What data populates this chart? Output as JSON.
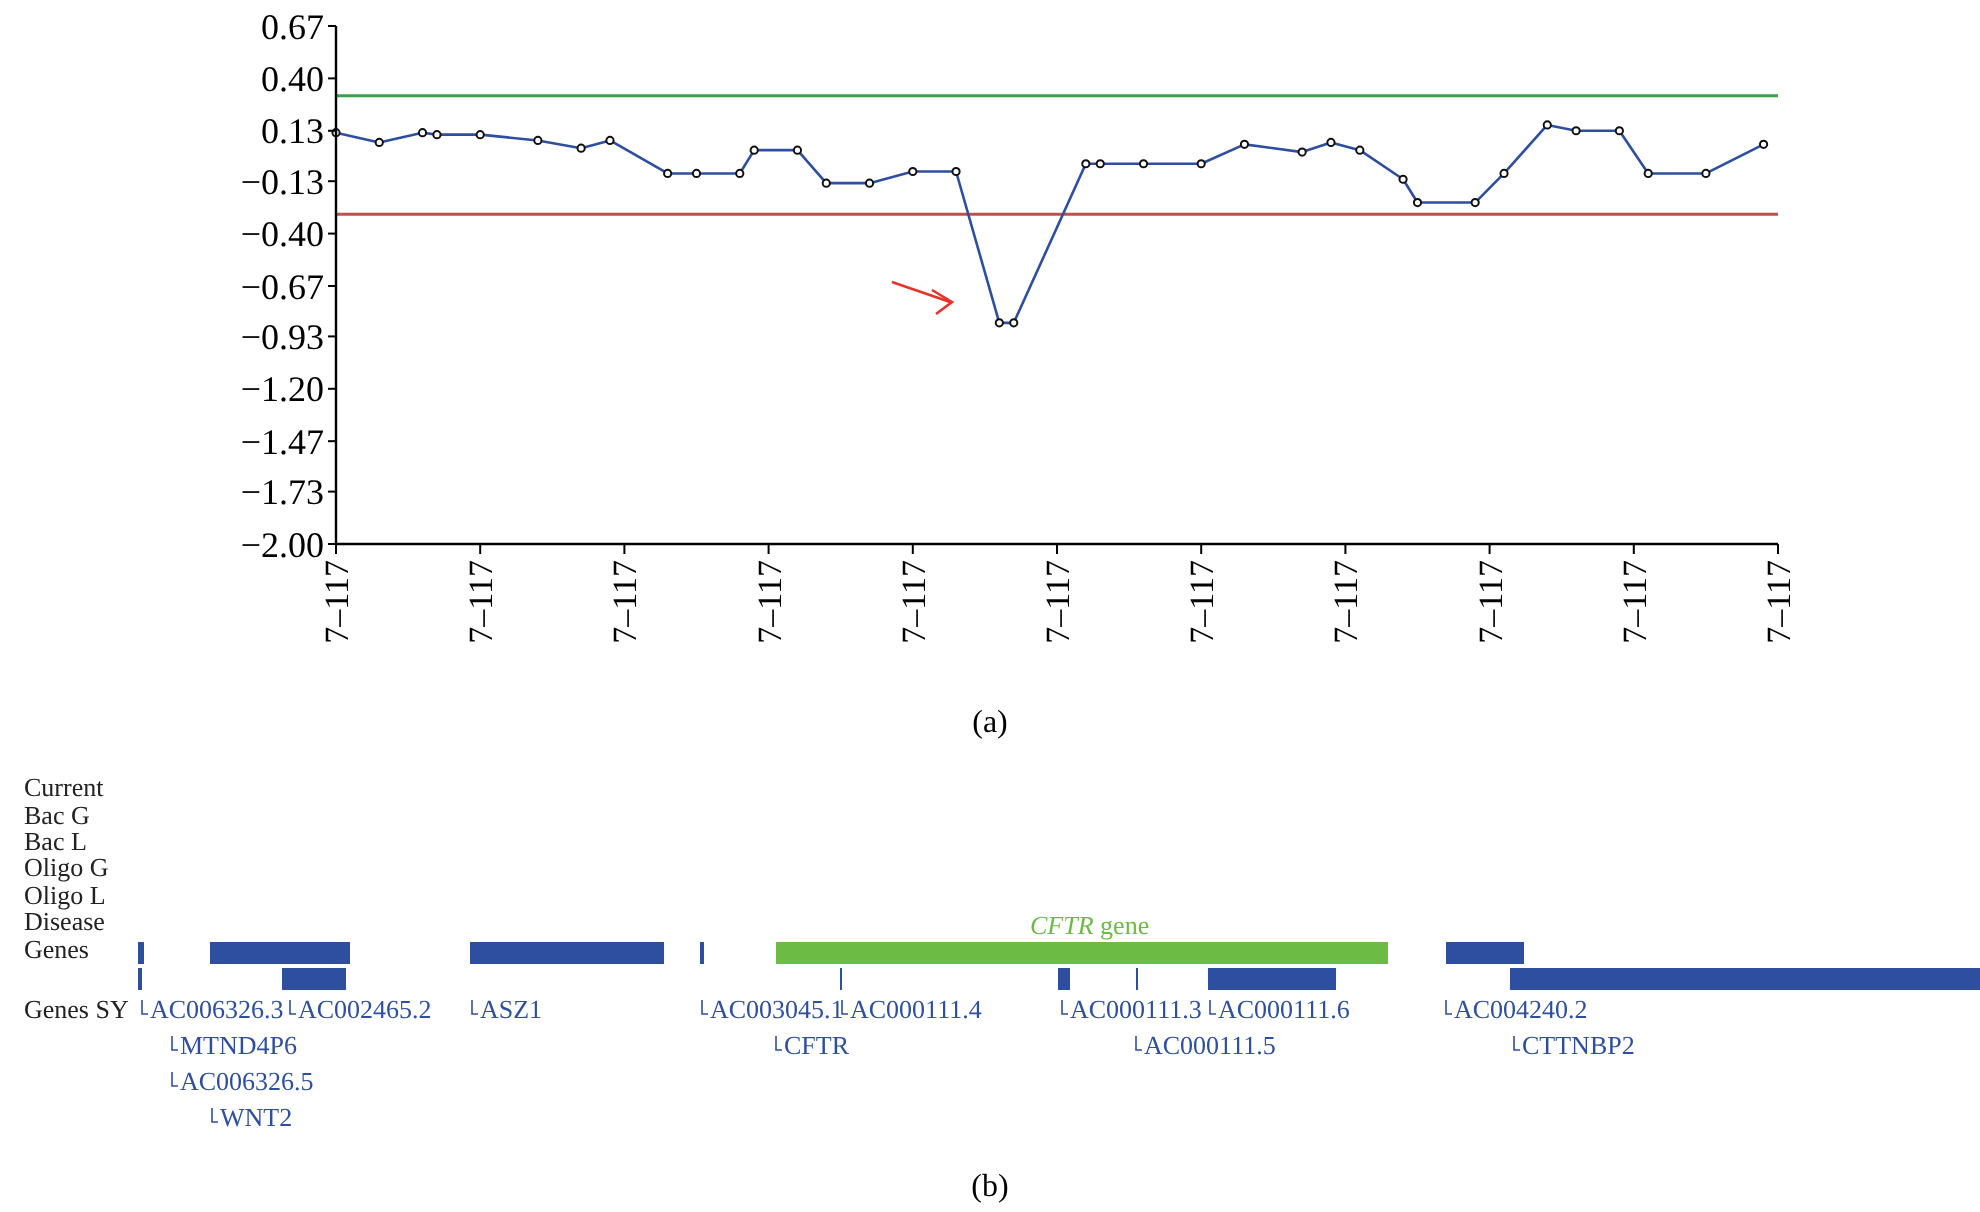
{
  "chart_data": [
    {
      "type": "line",
      "categories": [
        "7–117",
        null,
        null,
        null,
        null,
        null,
        null,
        null,
        null,
        null,
        "7–117",
        null,
        null,
        null,
        null,
        null,
        null,
        null,
        null,
        null,
        "7–117",
        null,
        null,
        null,
        null,
        null,
        null,
        null,
        null,
        null,
        "7–117",
        null,
        null,
        null,
        null,
        null,
        null,
        null,
        null,
        null,
        "7–117",
        null,
        null,
        null,
        null,
        null,
        null,
        null,
        null,
        null,
        "7–117",
        null,
        null,
        null,
        null,
        null,
        null,
        null,
        null,
        null,
        "7–117",
        null,
        null,
        null,
        null,
        null,
        null,
        null,
        null,
        null,
        "7–117",
        null,
        null,
        null,
        null,
        null,
        null,
        null,
        null,
        null,
        "7–117",
        null,
        null,
        null,
        null,
        null,
        null,
        null,
        null,
        null,
        "7–117",
        null,
        null,
        null,
        null,
        null,
        null,
        null,
        null,
        null,
        "7–117"
      ],
      "ylim": [
        -2.0,
        0.67
      ],
      "yticks": [
        {
          "value": 0.67,
          "label": "0.67"
        },
        {
          "value": 0.4,
          "label": "0.40"
        },
        {
          "value": 0.13,
          "label": "0.13"
        },
        {
          "value": -0.13,
          "label": "−0.13"
        },
        {
          "value": -0.4,
          "label": "−0.40"
        },
        {
          "value": -0.67,
          "label": "−0.67"
        },
        {
          "value": -0.93,
          "label": "−0.93"
        },
        {
          "value": -1.2,
          "label": "−1.20"
        },
        {
          "value": -1.47,
          "label": "−1.47"
        },
        {
          "value": -1.73,
          "label": "−1.73"
        },
        {
          "value": -2.0,
          "label": "−2.00"
        }
      ],
      "series": [
        {
          "color": "#2e4fa0",
          "values": [
            0.12,
            null,
            null,
            0.07,
            null,
            null,
            0.12,
            0.11,
            null,
            null,
            0.11,
            null,
            null,
            null,
            0.08,
            null,
            null,
            0.04,
            null,
            0.08,
            null,
            null,
            null,
            -0.09,
            null,
            -0.09,
            null,
            null,
            -0.09,
            0.03,
            null,
            null,
            0.03,
            null,
            -0.14,
            null,
            null,
            -0.14,
            null,
            null,
            -0.08,
            null,
            null,
            -0.08,
            null,
            null,
            -0.86,
            -0.86,
            null,
            null,
            null,
            null,
            -0.04,
            -0.04,
            null,
            null,
            -0.04,
            null,
            null,
            null,
            -0.04,
            null,
            null,
            0.06,
            null,
            null,
            null,
            0.02,
            null,
            0.07,
            null,
            0.03,
            null,
            null,
            -0.12,
            -0.24,
            null,
            null,
            null,
            -0.24,
            null,
            -0.09,
            null,
            null,
            0.16,
            null,
            0.13,
            null,
            null,
            0.13,
            null,
            -0.09,
            null,
            null,
            null,
            -0.09,
            null,
            null,
            null,
            0.06,
            null
          ]
        }
      ],
      "marker": "circle",
      "grid": false,
      "ref_lines": [
        {
          "axis": "y",
          "value": 0.31,
          "color": "#3aa04a"
        },
        {
          "axis": "y",
          "value": -0.3,
          "color": "#c0504d"
        }
      ],
      "annotations": [
        "(a)"
      ]
    },
    {
      "type": "other",
      "annotations": [
        "Current",
        "Bac G",
        "Bac L",
        "Oligo G",
        "Oligo L",
        "Disease",
        "Genes",
        "Genes SY",
        "CFTR gene",
        "AC006326.3",
        "AC002465.2",
        "ASZ1",
        "AC003045.1",
        "AC000111.4",
        "AC000111.3",
        "AC000111.6",
        "AC004240.2",
        "MTND4P6",
        "CFTR",
        "AC000111.5",
        "CTTNBP2",
        "AC006326.5",
        "WNT2",
        "(b)"
      ]
    }
  ]
}
